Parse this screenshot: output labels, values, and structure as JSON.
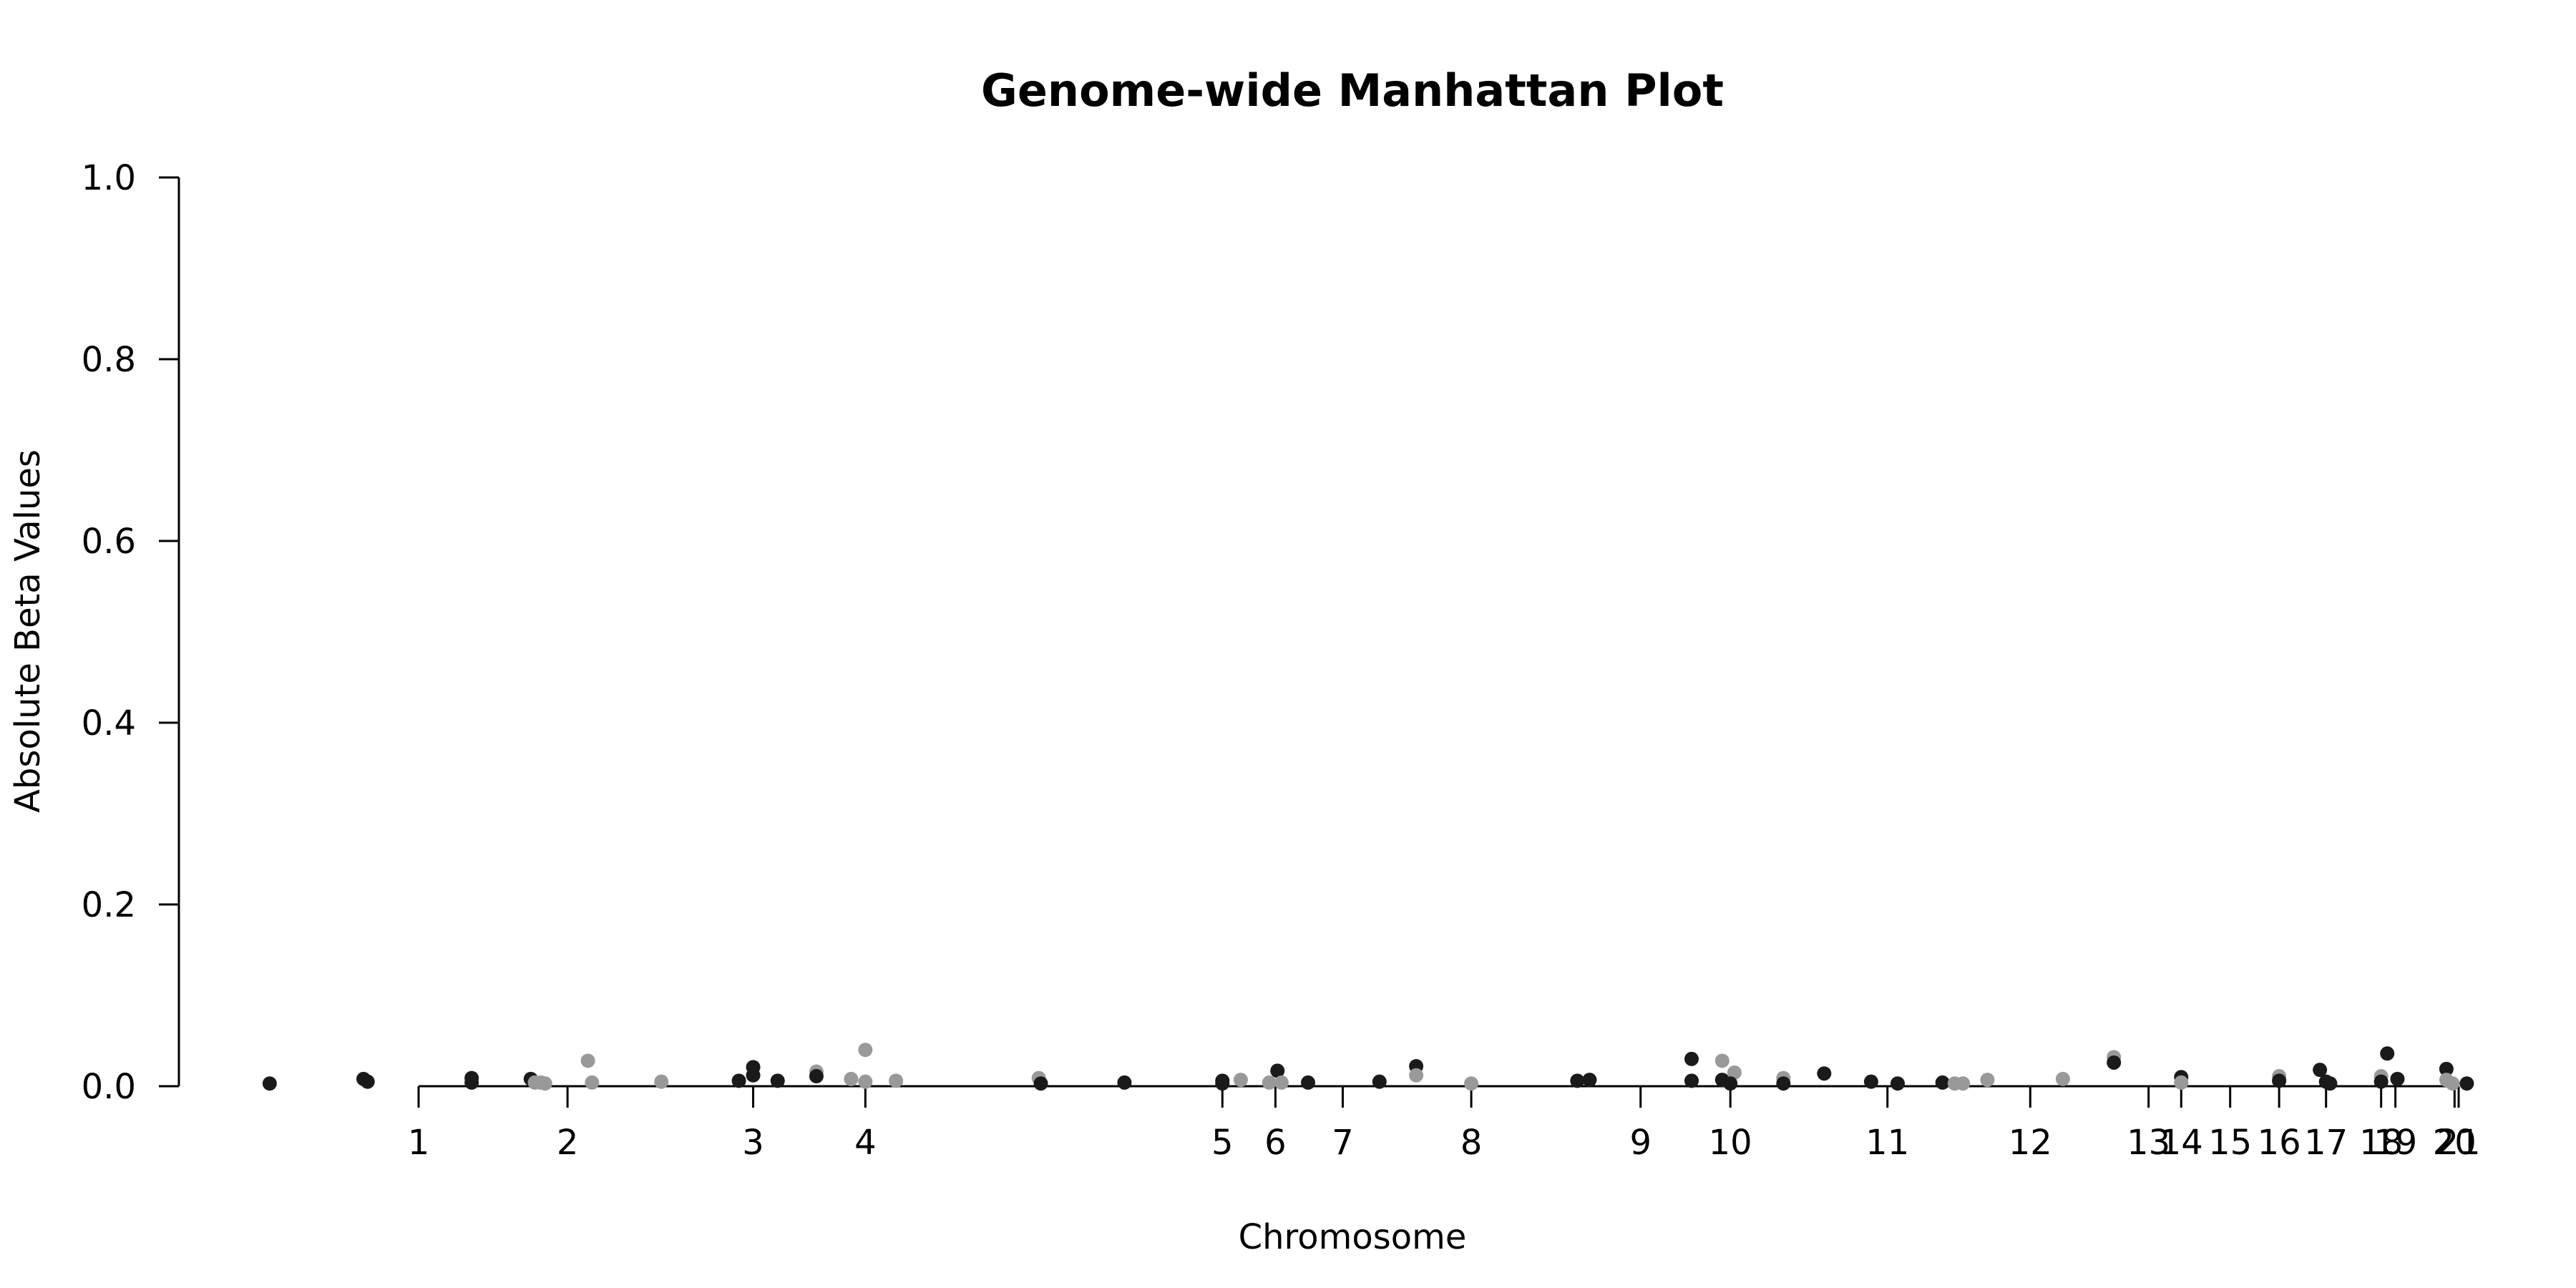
{
  "chart_data": {
    "type": "scatter",
    "title": "Genome-wide Manhattan Plot",
    "xlabel": "Chromosome",
    "ylabel": "Absolute Beta Values",
    "ylim": [
      0,
      1
    ],
    "y_ticks": [
      "0.0",
      "0.2",
      "0.4",
      "0.6",
      "0.8",
      "1.0"
    ],
    "x_ticks": [
      {
        "label": "1",
        "pos": 0.0
      },
      {
        "label": "2",
        "pos": 0.073
      },
      {
        "label": "3",
        "pos": 0.164
      },
      {
        "label": "4",
        "pos": 0.219
      },
      {
        "label": "5",
        "pos": 0.394
      },
      {
        "label": "6",
        "pos": 0.42
      },
      {
        "label": "7",
        "pos": 0.453
      },
      {
        "label": "8",
        "pos": 0.516
      },
      {
        "label": "9",
        "pos": 0.599
      },
      {
        "label": "10",
        "pos": 0.643
      },
      {
        "label": "11",
        "pos": 0.72
      },
      {
        "label": "12",
        "pos": 0.79
      },
      {
        "label": "13",
        "pos": 0.848
      },
      {
        "label": "14",
        "pos": 0.864
      },
      {
        "label": "15",
        "pos": 0.888
      },
      {
        "label": "16",
        "pos": 0.912
      },
      {
        "label": "17",
        "pos": 0.935
      },
      {
        "label": "18",
        "pos": 0.962
      },
      {
        "label": "19",
        "pos": 0.969
      },
      {
        "label": "20",
        "pos": 0.998
      },
      {
        "label": "21",
        "pos": 1.0
      }
    ],
    "colors": {
      "dark": "#1a1a1a",
      "light": "#999999"
    },
    "points": [
      {
        "x": -0.073,
        "y": 0.003,
        "c": "dark"
      },
      {
        "x": -0.027,
        "y": 0.008,
        "c": "dark"
      },
      {
        "x": -0.025,
        "y": 0.005,
        "c": "dark"
      },
      {
        "x": 0.026,
        "y": 0.009,
        "c": "dark"
      },
      {
        "x": 0.026,
        "y": 0.004,
        "c": "dark"
      },
      {
        "x": 0.055,
        "y": 0.008,
        "c": "dark"
      },
      {
        "x": 0.057,
        "y": 0.004,
        "c": "light"
      },
      {
        "x": 0.06,
        "y": 0.004,
        "c": "light"
      },
      {
        "x": 0.062,
        "y": 0.003,
        "c": "light"
      },
      {
        "x": 0.083,
        "y": 0.028,
        "c": "light"
      },
      {
        "x": 0.085,
        "y": 0.004,
        "c": "light"
      },
      {
        "x": 0.119,
        "y": 0.005,
        "c": "light"
      },
      {
        "x": 0.157,
        "y": 0.006,
        "c": "dark"
      },
      {
        "x": 0.164,
        "y": 0.021,
        "c": "dark"
      },
      {
        "x": 0.164,
        "y": 0.012,
        "c": "dark"
      },
      {
        "x": 0.176,
        "y": 0.006,
        "c": "dark"
      },
      {
        "x": 0.195,
        "y": 0.016,
        "c": "light"
      },
      {
        "x": 0.195,
        "y": 0.011,
        "c": "dark"
      },
      {
        "x": 0.212,
        "y": 0.008,
        "c": "light"
      },
      {
        "x": 0.219,
        "y": 0.04,
        "c": "light"
      },
      {
        "x": 0.219,
        "y": 0.005,
        "c": "light"
      },
      {
        "x": 0.234,
        "y": 0.006,
        "c": "light"
      },
      {
        "x": 0.304,
        "y": 0.009,
        "c": "light"
      },
      {
        "x": 0.305,
        "y": 0.003,
        "c": "dark"
      },
      {
        "x": 0.346,
        "y": 0.004,
        "c": "dark"
      },
      {
        "x": 0.394,
        "y": 0.006,
        "c": "dark"
      },
      {
        "x": 0.394,
        "y": 0.003,
        "c": "dark"
      },
      {
        "x": 0.403,
        "y": 0.007,
        "c": "light"
      },
      {
        "x": 0.417,
        "y": 0.004,
        "c": "light"
      },
      {
        "x": 0.421,
        "y": 0.017,
        "c": "dark"
      },
      {
        "x": 0.423,
        "y": 0.004,
        "c": "light"
      },
      {
        "x": 0.436,
        "y": 0.004,
        "c": "dark"
      },
      {
        "x": 0.471,
        "y": 0.005,
        "c": "dark"
      },
      {
        "x": 0.489,
        "y": 0.022,
        "c": "dark"
      },
      {
        "x": 0.489,
        "y": 0.012,
        "c": "light"
      },
      {
        "x": 0.516,
        "y": 0.003,
        "c": "light"
      },
      {
        "x": 0.568,
        "y": 0.006,
        "c": "dark"
      },
      {
        "x": 0.574,
        "y": 0.007,
        "c": "dark"
      },
      {
        "x": 0.624,
        "y": 0.03,
        "c": "dark"
      },
      {
        "x": 0.624,
        "y": 0.006,
        "c": "dark"
      },
      {
        "x": 0.639,
        "y": 0.028,
        "c": "light"
      },
      {
        "x": 0.639,
        "y": 0.007,
        "c": "dark"
      },
      {
        "x": 0.645,
        "y": 0.015,
        "c": "light"
      },
      {
        "x": 0.643,
        "y": 0.003,
        "c": "dark"
      },
      {
        "x": 0.669,
        "y": 0.009,
        "c": "light"
      },
      {
        "x": 0.669,
        "y": 0.003,
        "c": "dark"
      },
      {
        "x": 0.689,
        "y": 0.014,
        "c": "dark"
      },
      {
        "x": 0.712,
        "y": 0.005,
        "c": "dark"
      },
      {
        "x": 0.725,
        "y": 0.003,
        "c": "dark"
      },
      {
        "x": 0.747,
        "y": 0.004,
        "c": "dark"
      },
      {
        "x": 0.753,
        "y": 0.003,
        "c": "light"
      },
      {
        "x": 0.757,
        "y": 0.003,
        "c": "light"
      },
      {
        "x": 0.769,
        "y": 0.007,
        "c": "light"
      },
      {
        "x": 0.806,
        "y": 0.008,
        "c": "light"
      },
      {
        "x": 0.831,
        "y": 0.032,
        "c": "light"
      },
      {
        "x": 0.831,
        "y": 0.026,
        "c": "dark"
      },
      {
        "x": 0.864,
        "y": 0.01,
        "c": "dark"
      },
      {
        "x": 0.864,
        "y": 0.004,
        "c": "light"
      },
      {
        "x": 0.912,
        "y": 0.011,
        "c": "light"
      },
      {
        "x": 0.912,
        "y": 0.006,
        "c": "dark"
      },
      {
        "x": 0.932,
        "y": 0.018,
        "c": "dark"
      },
      {
        "x": 0.935,
        "y": 0.005,
        "c": "dark"
      },
      {
        "x": 0.937,
        "y": 0.003,
        "c": "dark"
      },
      {
        "x": 0.962,
        "y": 0.011,
        "c": "light"
      },
      {
        "x": 0.962,
        "y": 0.005,
        "c": "dark"
      },
      {
        "x": 0.965,
        "y": 0.036,
        "c": "dark"
      },
      {
        "x": 0.97,
        "y": 0.008,
        "c": "dark"
      },
      {
        "x": 0.994,
        "y": 0.019,
        "c": "dark"
      },
      {
        "x": 0.994,
        "y": 0.007,
        "c": "light"
      },
      {
        "x": 0.997,
        "y": 0.003,
        "c": "light"
      },
      {
        "x": 1.004,
        "y": 0.003,
        "c": "dark"
      }
    ]
  }
}
